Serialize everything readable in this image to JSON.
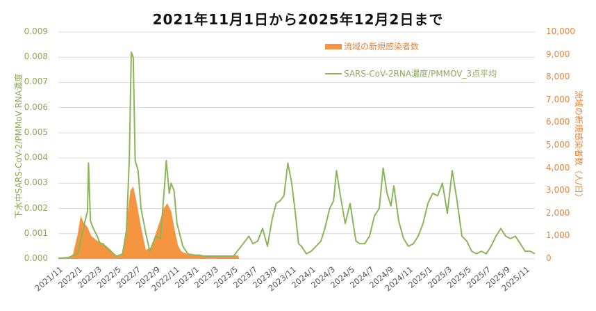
{
  "chart_data": {
    "type": "line",
    "title": "2021年11月1日から2025年12月2日まで",
    "xlabel": "",
    "ylabel": "下水中SARS-CoV-2/PMMoV RNA濃度",
    "y2label": "流域の新規感染者数（人/日）",
    "ylim": [
      0,
      0.009
    ],
    "y2lim": [
      0,
      10000
    ],
    "grid": true,
    "legend_position": "top-right-inside",
    "x_tick_labels": [
      "2021/11",
      "2022/1",
      "2022/3",
      "2022/5",
      "2022/7",
      "2022/9",
      "2022/11",
      "2023/1",
      "2023/3",
      "2023/5",
      "2023/7",
      "2023/9",
      "2023/11",
      "2024/1",
      "2024/3",
      "2024/5",
      "2024/7",
      "2024/9",
      "2024/11",
      "2025/1",
      "2025/3",
      "2025/5",
      "2025/7",
      "2025/9",
      "2025/11"
    ],
    "y_tick_labels": [
      "0.000",
      "0.001",
      "0.002",
      "0.003",
      "0.004",
      "0.005",
      "0.006",
      "0.007",
      "0.008",
      "0.009"
    ],
    "y2_tick_labels": [
      "0",
      "1,000",
      "2,000",
      "3,000",
      "4,000",
      "5,000",
      "6,000",
      "7,000",
      "8,000",
      "9,000",
      "10,000"
    ],
    "series": [
      {
        "name": "流域の新規感染者数",
        "type": "area",
        "axis": "right",
        "color": "#f59540",
        "x_month_index": [
          0,
          1.0,
          1.5,
          2.0,
          2.3,
          2.6,
          3.0,
          3.4,
          4.0,
          4.5,
          5.0,
          5.5,
          6.0,
          6.6,
          7.0,
          7.4,
          7.7,
          8.0,
          8.5,
          9.0,
          9.5,
          9.7,
          10.0,
          10.4,
          10.8,
          11.2,
          11.6,
          12.0,
          12.3,
          12.6,
          13.0,
          13.5,
          14.0,
          14.5,
          15.0,
          15.5,
          16.0,
          17.0,
          18.0,
          18.5,
          18.6
        ],
        "values": [
          20,
          40,
          200,
          1100,
          1900,
          1600,
          1400,
          1000,
          800,
          700,
          550,
          350,
          100,
          200,
          1500,
          3000,
          3200,
          2600,
          1400,
          400,
          500,
          650,
          1100,
          1600,
          2200,
          2450,
          2100,
          1200,
          600,
          350,
          250,
          200,
          150,
          150,
          150,
          150,
          150,
          150,
          150,
          150,
          0
        ]
      },
      {
        "name": "SARS-CoV-2RNA濃度/PMMOV_3点平均",
        "type": "line",
        "axis": "left",
        "color": "#8ab55a",
        "x_month_index": [
          0,
          1.0,
          2.0,
          2.5,
          3.0,
          3.1,
          3.3,
          3.6,
          4.0,
          4.3,
          4.6,
          5.0,
          6.0,
          6.6,
          7.0,
          7.3,
          7.5,
          7.7,
          7.9,
          8.2,
          8.5,
          9.0,
          9.4,
          10.0,
          10.5,
          10.9,
          11.1,
          11.4,
          11.6,
          11.9,
          12.2,
          12.8,
          13.3,
          14.0,
          14.5,
          15.0,
          15.5,
          16.0,
          16.5,
          17.0,
          17.5,
          18.0,
          19.0,
          19.6,
          20.0,
          20.5,
          21.0,
          21.5,
          22.0,
          22.4,
          22.8,
          23.2,
          23.6,
          24.0,
          24.4,
          24.7,
          25.0,
          25.5,
          26.0,
          26.5,
          27.0,
          27.4,
          27.9,
          28.3,
          28.6,
          29.0,
          29.5,
          30.0,
          30.6,
          31.0,
          31.5,
          32.0,
          32.5,
          33.0,
          33.4,
          33.8,
          34.2,
          34.5,
          35.0,
          35.5,
          36.0,
          36.5,
          37.0,
          37.5,
          38.0,
          38.5,
          39.0,
          39.5,
          40.0,
          40.5,
          41.0,
          41.5,
          42.0,
          42.5,
          43.0,
          43.5,
          44.0,
          44.5,
          45.0,
          45.5,
          46.0,
          46.5,
          47.0,
          47.5,
          48.0,
          48.5,
          49.0
        ],
        "values": [
          2e-05,
          5e-05,
          0.0002,
          0.0011,
          0.0019,
          0.0038,
          0.0015,
          0.0012,
          0.0009,
          0.0006,
          0.0006,
          0.0004,
          0.0001,
          0.0002,
          0.0011,
          0.004,
          0.0082,
          0.008,
          0.0039,
          0.0035,
          0.002,
          0.001,
          0.0003,
          0.0009,
          0.0008,
          0.0028,
          0.0039,
          0.0026,
          0.003,
          0.0027,
          0.0014,
          0.0005,
          0.0002,
          0.00015,
          0.00015,
          0.0001,
          0.0001,
          0.0001,
          0.0001,
          0.0001,
          0.0001,
          0.0001,
          0.0006,
          0.0009,
          0.0006,
          0.0007,
          0.0012,
          0.0005,
          0.0016,
          0.0022,
          0.0023,
          0.0025,
          0.0038,
          0.003,
          0.0017,
          0.0006,
          0.0005,
          0.0002,
          0.0003,
          0.0005,
          0.0007,
          0.0012,
          0.002,
          0.0023,
          0.0035,
          0.0025,
          0.0014,
          0.0022,
          0.0007,
          0.0006,
          0.0006,
          0.0009,
          0.0017,
          0.002,
          0.0036,
          0.0026,
          0.0021,
          0.0029,
          0.0015,
          0.0008,
          0.0005,
          0.0006,
          0.0009,
          0.0014,
          0.0022,
          0.0026,
          0.0025,
          0.003,
          0.0018,
          0.0035,
          0.0023,
          0.0009,
          0.0007,
          0.0003,
          0.0002,
          0.0003,
          0.0002,
          0.0005,
          0.0009,
          0.0012,
          0.0009,
          0.0008,
          0.0009,
          0.0006,
          0.0003,
          0.0003,
          0.0002
        ]
      }
    ]
  },
  "legend": {
    "cases_label": "流域の新規感染者数",
    "rna_label": "SARS-CoV-2RNA濃度/PMMOV_3点平均"
  }
}
